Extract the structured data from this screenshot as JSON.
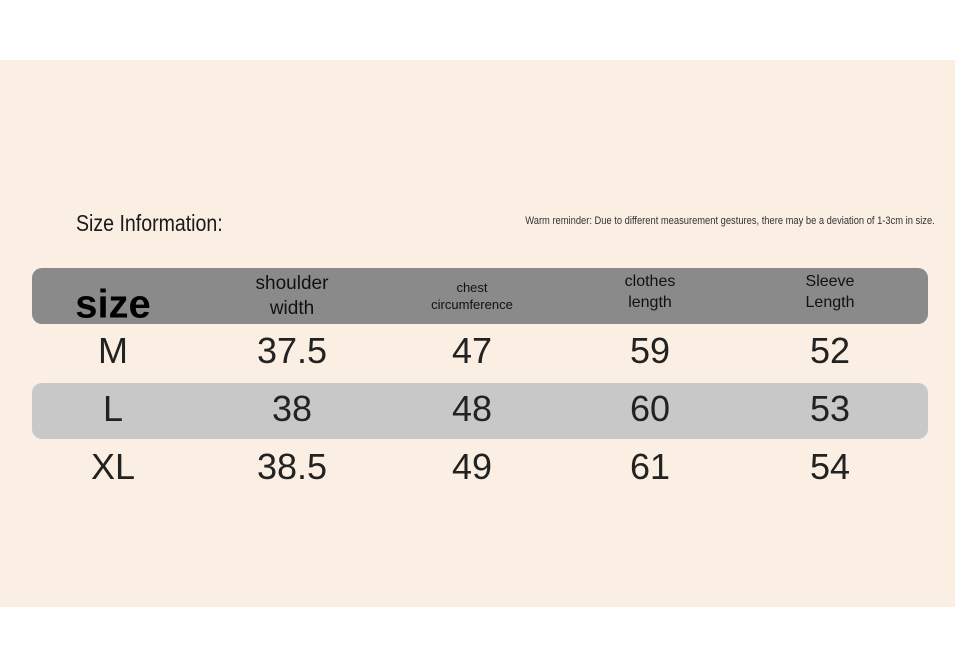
{
  "header": {
    "title": "Size Information:",
    "reminder": "Warm reminder: Due to different measurement gestures, there may be a deviation of 1-3cm in size."
  },
  "table": {
    "columns": [
      "size",
      "shoulder width",
      "chest circumference",
      "clothes length",
      "Sleeve Length"
    ],
    "rows": [
      [
        "M",
        "37.5",
        "47",
        "59",
        "52"
      ],
      [
        "L",
        "38",
        "48",
        "60",
        "53"
      ],
      [
        "XL",
        "38.5",
        "49",
        "61",
        "54"
      ]
    ]
  }
}
